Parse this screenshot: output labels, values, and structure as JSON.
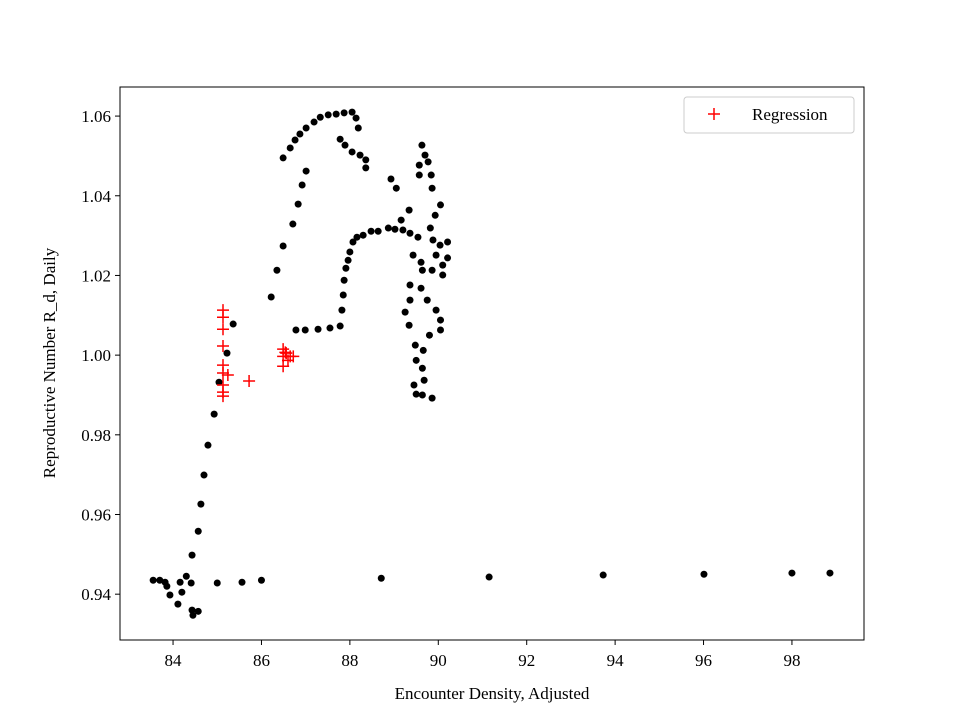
{
  "chart_data": {
    "type": "scatter",
    "xlabel": "Encounter Density, Adjusted",
    "ylabel": "Reproductive Number R_d, Daily",
    "xlim": [
      82.8,
      99.63
    ],
    "ylim": [
      0.9285,
      1.0673
    ],
    "xticks": [
      84,
      86,
      88,
      90,
      92,
      94,
      96,
      98
    ],
    "yticks": [
      0.94,
      0.96,
      0.98,
      {
        "value": 1,
        "label": "1.00"
      },
      1.02,
      1.04,
      1.06
    ],
    "legend": "upper right",
    "series": [
      {
        "color": "#000000",
        "marker": "circle",
        "x": [
          83.55,
          83.7,
          83.82,
          83.86,
          83.93,
          84.11,
          84.16,
          84.2,
          84.3,
          84.41,
          84.43,
          84.45,
          84.57,
          85.0,
          85.56,
          86.0,
          88.71,
          91.15,
          93.73,
          96.01,
          98.0,
          98.86,
          84.43,
          84.57,
          84.63,
          84.7,
          84.79,
          84.93,
          85.04,
          85.22,
          85.36,
          86.22,
          86.35,
          86.49,
          86.71,
          86.83,
          86.92,
          87.01,
          86.49,
          86.65,
          86.76,
          86.87,
          87.01,
          87.19,
          87.33,
          87.51,
          87.69,
          87.87,
          88.05,
          88.14,
          88.19,
          87.78,
          87.89,
          88.05,
          88.23,
          88.36,
          88.36,
          86.78,
          86.99,
          87.28,
          87.55,
          87.78,
          87.82,
          87.85,
          87.87,
          87.91,
          87.96,
          88.0,
          88.07,
          88.16,
          88.3,
          88.48,
          88.64,
          88.87,
          89.02,
          89.2,
          89.36,
          89.54,
          88.93,
          89.05,
          89.16,
          89.34,
          89.43,
          89.36,
          89.36,
          89.25,
          89.34,
          89.48,
          89.5,
          89.45,
          89.5,
          89.64,
          89.86,
          89.68,
          89.64,
          89.66,
          89.8,
          90.05,
          90.05,
          89.95,
          89.75,
          89.61,
          89.64,
          89.61,
          89.86,
          89.95,
          90.04,
          89.88,
          89.82,
          89.93,
          90.05,
          89.86,
          89.84,
          89.77,
          89.7,
          89.63,
          89.57,
          89.57,
          90.1,
          90.21,
          90.21,
          90.1
        ],
        "values": [
          0.9435,
          0.9435,
          0.943,
          0.942,
          0.9398,
          0.9375,
          0.943,
          0.9405,
          0.9445,
          0.9428,
          0.936,
          0.9347,
          0.9357,
          0.9428,
          0.943,
          0.9435,
          0.944,
          0.9443,
          0.9448,
          0.945,
          0.9453,
          0.9453,
          0.9498,
          0.9558,
          0.9626,
          0.9699,
          0.9774,
          0.9852,
          0.9932,
          1.0005,
          1.0078,
          1.0146,
          1.0213,
          1.0274,
          1.0329,
          1.0379,
          1.0427,
          1.0462,
          1.0495,
          1.052,
          1.054,
          1.0555,
          1.057,
          1.0585,
          1.0597,
          1.0603,
          1.0605,
          1.0608,
          1.061,
          1.0595,
          1.057,
          1.0542,
          1.0527,
          1.051,
          1.0502,
          1.049,
          1.047,
          1.0063,
          1.0063,
          1.0065,
          1.0068,
          1.0073,
          1.0113,
          1.0151,
          1.0188,
          1.0218,
          1.0238,
          1.0259,
          1.0284,
          1.0296,
          1.0301,
          1.0311,
          1.0311,
          1.0319,
          1.0316,
          1.0314,
          1.0306,
          1.0296,
          1.0442,
          1.0419,
          1.0339,
          1.0364,
          1.0251,
          1.0176,
          1.0138,
          1.0108,
          1.0075,
          1.0025,
          0.9987,
          0.9925,
          0.9902,
          0.99,
          0.9892,
          0.9937,
          0.9967,
          1.0012,
          1.005,
          1.0088,
          1.0063,
          1.0113,
          1.0138,
          1.0168,
          1.0213,
          1.0233,
          1.0213,
          1.0251,
          1.0276,
          1.0289,
          1.0319,
          1.0351,
          1.0377,
          1.0419,
          1.0452,
          1.0485,
          1.0502,
          1.0527,
          1.0477,
          1.0452,
          1.0201,
          1.0284,
          1.0244,
          1.0226
        ]
      },
      {
        "name": "Regression",
        "color": "#ff0000",
        "marker": "plus",
        "x": [
          85.13,
          85.13,
          85.13,
          85.13,
          85.13,
          85.13,
          85.24,
          85.13,
          85.13,
          85.13,
          85.72,
          86.49,
          86.56,
          86.49,
          86.65,
          86.72,
          86.6,
          86.49,
          86.54
        ],
        "values": [
          1.0113,
          1.0095,
          1.0065,
          1.0023,
          0.9975,
          0.9955,
          0.995,
          0.9925,
          0.9907,
          0.9897,
          0.9935,
          1.0015,
          1.0005,
          0.9997,
          0.9997,
          0.9997,
          0.9987,
          0.9972,
          1.0007
        ]
      }
    ]
  }
}
